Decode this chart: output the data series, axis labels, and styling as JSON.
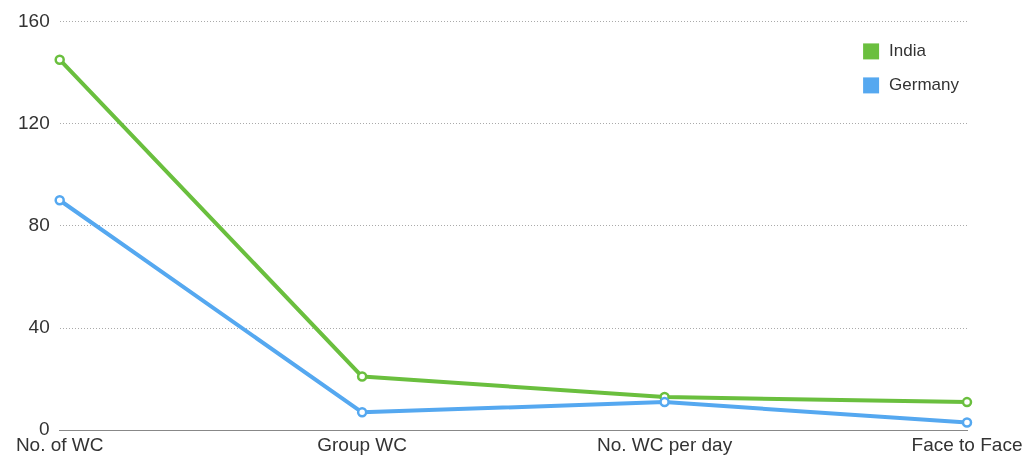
{
  "chart_data": {
    "type": "line",
    "categories": [
      "No. of WC",
      "Group WC",
      "No. WC per day",
      "Face to Face"
    ],
    "series": [
      {
        "name": "India",
        "color": "#6abf3e",
        "values": [
          145,
          21,
          13,
          11
        ]
      },
      {
        "name": "Germany",
        "color": "#55a8f0",
        "values": [
          90,
          7,
          11,
          3
        ]
      }
    ],
    "ylim": [
      0,
      160
    ],
    "yticks": [
      0,
      40,
      80,
      120,
      160
    ],
    "grid": "y",
    "legend": "top right",
    "marker": "circle",
    "line_style": "solid"
  }
}
